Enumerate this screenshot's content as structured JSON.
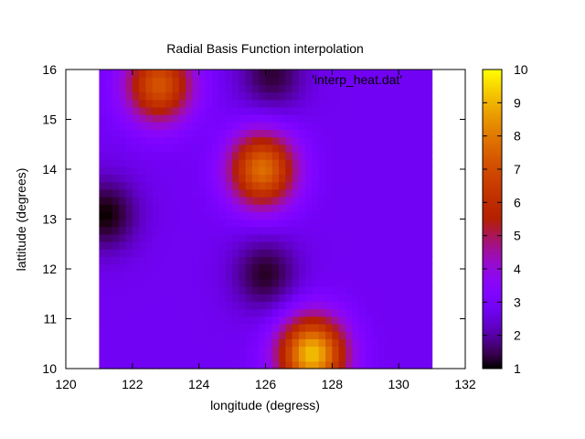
{
  "chart_data": {
    "type": "heatmap",
    "title": "Radial Basis Function interpolation",
    "xlabel": "longitude (degress)",
    "ylabel": "lattitude (degrees)",
    "legend_entry": "'interp_heat.dat'",
    "xlim": [
      120,
      132
    ],
    "ylim": [
      10,
      16
    ],
    "xticks": [
      "120",
      "122",
      "124",
      "126",
      "128",
      "130",
      "132"
    ],
    "yticks": [
      "10",
      "11",
      "12",
      "13",
      "14",
      "15",
      "16"
    ],
    "data_x_range": [
      121,
      131
    ],
    "colorbar": {
      "range": [
        1,
        10
      ],
      "ticks": [
        "1",
        "2",
        "3",
        "4",
        "5",
        "6",
        "7",
        "8",
        "9",
        "10"
      ],
      "palette": "gnuplot rgbformulae 7,5,15 (black-blue-magenta-yellow)"
    },
    "features": [
      {
        "x": 122.8,
        "y": 15.7,
        "value": 7.2,
        "kind": "peak"
      },
      {
        "x": 125.9,
        "y": 14.0,
        "value": 7.8,
        "kind": "peak"
      },
      {
        "x": 127.4,
        "y": 10.3,
        "value": 9.2,
        "kind": "peak"
      },
      {
        "x": 126.2,
        "y": 15.9,
        "value": 1.3,
        "kind": "trough"
      },
      {
        "x": 121.2,
        "y": 13.1,
        "value": 1.0,
        "kind": "trough"
      },
      {
        "x": 126.0,
        "y": 11.9,
        "value": 1.2,
        "kind": "trough"
      }
    ],
    "background_value": 2.8
  }
}
